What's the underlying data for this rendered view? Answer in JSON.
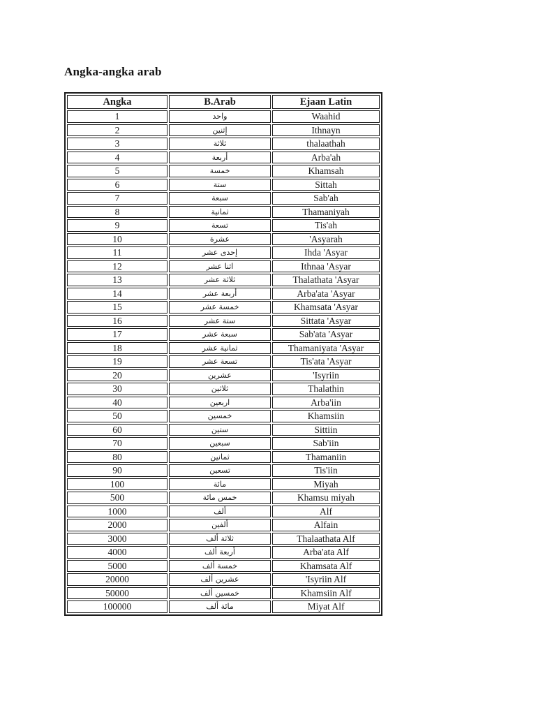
{
  "page": {
    "title": "Angka-angka arab"
  },
  "table": {
    "headers": [
      "Angka",
      "B.Arab",
      "Ejaan Latin"
    ],
    "rows": [
      {
        "angka": "1",
        "arab": "واحد",
        "latin": "Waahid"
      },
      {
        "angka": "2",
        "arab": "إثنين",
        "latin": "Ithnayn"
      },
      {
        "angka": "3",
        "arab": "ثلاثة",
        "latin": "thalaathah"
      },
      {
        "angka": "4",
        "arab": "أربعة",
        "latin": "Arba'ah"
      },
      {
        "angka": "5",
        "arab": "خمسة",
        "latin": "Khamsah"
      },
      {
        "angka": "6",
        "arab": "ستة",
        "latin": "Sittah"
      },
      {
        "angka": "7",
        "arab": "سبعة",
        "latin": "Sab'ah"
      },
      {
        "angka": "8",
        "arab": "ثمانية",
        "latin": "Thamaniyah"
      },
      {
        "angka": "9",
        "arab": "تسعة",
        "latin": "Tis'ah"
      },
      {
        "angka": "10",
        "arab": "عشرة",
        "latin": "'Asyarah"
      },
      {
        "angka": "11",
        "arab": "إحدى عشر",
        "latin": "Ihda 'Asyar"
      },
      {
        "angka": "12",
        "arab": "اثنا عشر",
        "latin": "Ithnaa 'Asyar"
      },
      {
        "angka": "13",
        "arab": "ثلاثة عشر",
        "latin": "Thalathata 'Asyar"
      },
      {
        "angka": "14",
        "arab": "أربعة عشر",
        "latin": "Arba'ata 'Asyar"
      },
      {
        "angka": "15",
        "arab": "خمسة عشر",
        "latin": "Khamsata 'Asyar"
      },
      {
        "angka": "16",
        "arab": "ستة عشر",
        "latin": "Sittata 'Asyar"
      },
      {
        "angka": "17",
        "arab": "سبعة عشر",
        "latin": "Sab'ata 'Asyar"
      },
      {
        "angka": "18",
        "arab": "ثمانية عشر",
        "latin": "Thamaniyata 'Asyar"
      },
      {
        "angka": "19",
        "arab": "تسعة عشر",
        "latin": "Tis'ata 'Asyar"
      },
      {
        "angka": "20",
        "arab": "عشرين",
        "latin": "'Isyriin"
      },
      {
        "angka": "30",
        "arab": "ثلاثين",
        "latin": "Thalathin"
      },
      {
        "angka": "40",
        "arab": "اربعين",
        "latin": "Arba'iin"
      },
      {
        "angka": "50",
        "arab": "خمسين",
        "latin": "Khamsiin"
      },
      {
        "angka": "60",
        "arab": "ستين",
        "latin": "Sittiin"
      },
      {
        "angka": "70",
        "arab": "سبعين",
        "latin": "Sab'iin"
      },
      {
        "angka": "80",
        "arab": "ثمانين",
        "latin": "Thamaniin"
      },
      {
        "angka": "90",
        "arab": "تسعين",
        "latin": "Tis'iin"
      },
      {
        "angka": "100",
        "arab": "مائة",
        "latin": "Miyah"
      },
      {
        "angka": "500",
        "arab": "خمس مائة",
        "latin": "Khamsu miyah"
      },
      {
        "angka": "1000",
        "arab": "ألف",
        "latin": "Alf"
      },
      {
        "angka": "2000",
        "arab": "ألفين",
        "latin": "Alfain"
      },
      {
        "angka": "3000",
        "arab": "ثلاثة ألف",
        "latin": "Thalaathata Alf"
      },
      {
        "angka": "4000",
        "arab": "أربعة ألف",
        "latin": "Arba'ata Alf"
      },
      {
        "angka": "5000",
        "arab": "خمسة ألف",
        "latin": "Khamsata Alf"
      },
      {
        "angka": "20000",
        "arab": "عشرين ألف",
        "latin": "'Isyriin Alf"
      },
      {
        "angka": "50000",
        "arab": "خمسين ألف",
        "latin": "Khamsiin Alf"
      },
      {
        "angka": "100000",
        "arab": "مائة ألف",
        "latin": "Miyat Alf"
      }
    ]
  }
}
